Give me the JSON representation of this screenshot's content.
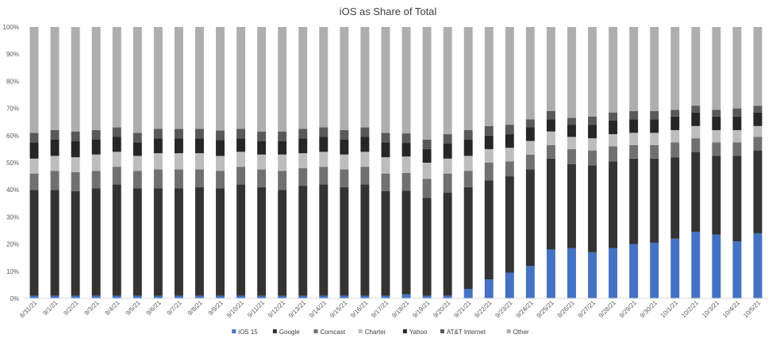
{
  "chart_data": {
    "type": "bar",
    "stacked": true,
    "percent_stacked": true,
    "title": "iOS as Share of Total",
    "xlabel": "",
    "ylabel": "",
    "ylim": [
      0,
      100
    ],
    "y_ticks": [
      "0%",
      "10%",
      "20%",
      "30%",
      "40%",
      "50%",
      "60%",
      "70%",
      "80%",
      "90%",
      "100%"
    ],
    "grid": false,
    "legend_position": "bottom",
    "categories": [
      "8/31/21",
      "9/1/21",
      "9/2/21",
      "9/3/21",
      "9/4/21",
      "9/5/21",
      "9/6/21",
      "9/7/21",
      "9/8/21",
      "9/9/21",
      "9/10/21",
      "9/11/21",
      "9/12/21",
      "9/13/21",
      "9/14/21",
      "9/15/21",
      "9/16/21",
      "9/17/21",
      "9/18/21",
      "9/19/21",
      "9/20/21",
      "9/21/21",
      "9/22/21",
      "9/23/21",
      "9/24/21",
      "9/25/21",
      "9/26/21",
      "9/27/21",
      "9/28/21",
      "9/29/21",
      "9/30/21",
      "10/1/21",
      "10/2/21",
      "10/3/21",
      "10/4/21",
      "10/5/21"
    ],
    "series": [
      {
        "name": "iOS 15",
        "color": "#4472C4",
        "values": [
          1,
          1,
          1,
          1,
          1,
          1,
          1,
          1,
          1,
          1,
          1,
          1,
          1,
          1,
          1,
          1,
          1,
          1,
          1.5,
          1,
          1,
          3.5,
          7,
          9.5,
          12,
          18,
          18.5,
          17,
          18.5,
          20,
          20.5,
          22,
          24.5,
          23.5,
          21,
          24
        ]
      },
      {
        "name": "Google",
        "color": "#333333",
        "values": [
          39,
          39,
          38.5,
          39.5,
          41,
          39.5,
          39.5,
          39.5,
          40,
          40,
          41,
          40,
          39,
          40.5,
          41,
          40,
          41,
          38.5,
          38,
          36,
          38,
          37.5,
          36.5,
          35.5,
          35.5,
          33.5,
          31,
          32,
          32,
          31.5,
          31,
          30,
          29.5,
          29,
          31.5,
          30.5
        ]
      },
      {
        "name": "Comcast",
        "color": "#707070",
        "values": [
          6,
          7,
          7,
          6.5,
          6.5,
          6.5,
          7,
          7,
          6.5,
          6.5,
          6.5,
          6.5,
          7,
          6.5,
          6.5,
          6.5,
          6.5,
          6.5,
          6.5,
          7,
          7,
          6,
          6.5,
          5.5,
          5.5,
          5,
          5.5,
          5.5,
          5.5,
          5,
          5,
          5.5,
          5,
          5,
          5,
          5
        ]
      },
      {
        "name": "Charter",
        "color": "#BDBDBD",
        "values": [
          5.5,
          5.5,
          5.5,
          6,
          5.5,
          5.5,
          6,
          6,
          6,
          5.5,
          5.5,
          5.5,
          6,
          5.5,
          5.5,
          5.5,
          5.5,
          6,
          6,
          6,
          5.5,
          5.5,
          5,
          5,
          5,
          5,
          4.5,
          4.5,
          4.5,
          4.5,
          4.5,
          4.5,
          4.5,
          4.5,
          4.5,
          4
        ]
      },
      {
        "name": "Yahoo",
        "color": "#262626",
        "values": [
          6,
          6,
          6,
          5.5,
          5.5,
          5,
          5.5,
          5.5,
          5.5,
          6,
          5,
          5,
          5,
          5.5,
          5.5,
          5.5,
          5.5,
          5.5,
          5,
          5,
          5.5,
          6,
          5,
          5,
          5,
          4.5,
          4.5,
          5,
          5,
          5,
          5,
          5,
          5,
          5,
          5,
          5
        ]
      },
      {
        "name": "AT&T Internet",
        "color": "#595959",
        "values": [
          3.5,
          3.5,
          3.5,
          3.5,
          3.5,
          3.5,
          3.5,
          3.5,
          3.5,
          3.5,
          3.5,
          3.5,
          3.5,
          3.5,
          3.5,
          3.5,
          3.5,
          3.5,
          3.5,
          3.5,
          3.5,
          3.5,
          3.5,
          3.5,
          3,
          3,
          2.5,
          3,
          3,
          3,
          3,
          2.5,
          2.5,
          2.5,
          3,
          2.5
        ]
      },
      {
        "name": "Other",
        "color": "#AEAEAE",
        "values": [
          39,
          38,
          38.5,
          38,
          37,
          39,
          37.5,
          37.5,
          37.5,
          38.5,
          37.5,
          38.5,
          38.5,
          37.5,
          37,
          38,
          37,
          39,
          39,
          41.5,
          39.5,
          38,
          36.5,
          36,
          34,
          31,
          33.5,
          33,
          31.5,
          31,
          31,
          30.5,
          29,
          30.5,
          30,
          29
        ]
      }
    ]
  }
}
